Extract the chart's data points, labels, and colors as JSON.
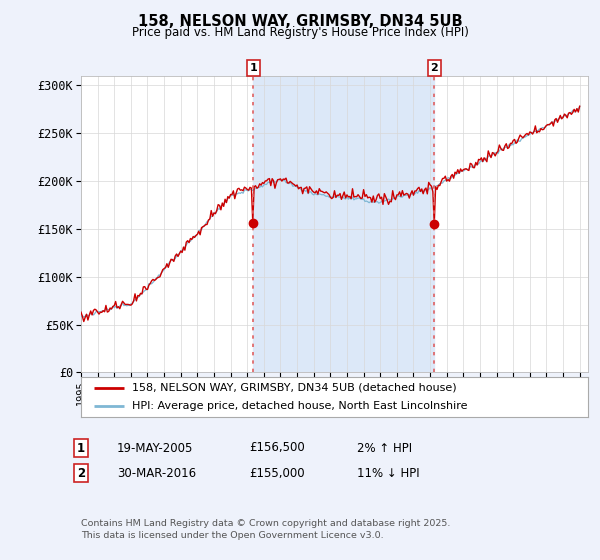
{
  "title": "158, NELSON WAY, GRIMSBY, DN34 5UB",
  "subtitle": "Price paid vs. HM Land Registry's House Price Index (HPI)",
  "ylim": [
    0,
    310000
  ],
  "yticks": [
    0,
    50000,
    100000,
    150000,
    200000,
    250000,
    300000
  ],
  "ytick_labels": [
    "£0",
    "£50K",
    "£100K",
    "£150K",
    "£200K",
    "£250K",
    "£300K"
  ],
  "line1_color": "#cc0000",
  "line2_color": "#7fb7d4",
  "vline_color": "#e06060",
  "span_color": "#dce8f8",
  "legend_label1": "158, NELSON WAY, GRIMSBY, DN34 5UB (detached house)",
  "legend_label2": "HPI: Average price, detached house, North East Lincolnshire",
  "note1_date": "19-MAY-2005",
  "note1_price": "£156,500",
  "note1_hpi": "2% ↑ HPI",
  "note2_date": "30-MAR-2016",
  "note2_price": "£155,000",
  "note2_hpi": "11% ↓ HPI",
  "copyright": "Contains HM Land Registry data © Crown copyright and database right 2025.\nThis data is licensed under the Open Government Licence v3.0.",
  "bg_color": "#eef2fb",
  "plot_bg": "#ffffff",
  "sale1_year": 2005.37,
  "sale1_price": 156500,
  "sale2_year": 2016.25,
  "sale2_price": 155000
}
